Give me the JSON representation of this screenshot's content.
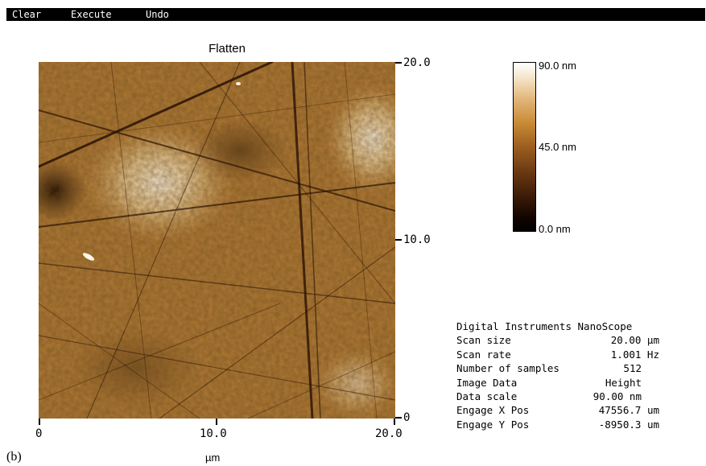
{
  "menu": {
    "clear": "Clear",
    "execute": "Execute",
    "undo": "Undo"
  },
  "panel": {
    "title": "Flatten",
    "label": "(b)"
  },
  "axes": {
    "right_ticks": {
      "top": "20.0",
      "middle": "10.0",
      "bottom": "0"
    },
    "bottom_ticks": {
      "left": "0",
      "middle": "10.0",
      "right": "20.0"
    },
    "x_unit": "µm"
  },
  "colorbar": {
    "max": "90.0 nm",
    "mid": "45.0 nm",
    "min": "0.0 nm",
    "colors": [
      "#ffffff",
      "#e1b477",
      "#9c5e1f",
      "#3a1a08",
      "#000000"
    ]
  },
  "info": {
    "header": "Digital Instruments NanoScope",
    "rows": [
      {
        "label": "Scan size",
        "value": "20.00 µm"
      },
      {
        "label": "Scan rate",
        "value": "1.001 Hz"
      },
      {
        "label": "Number of samples",
        "value": "512"
      },
      {
        "label": "Image Data",
        "value": "Height"
      },
      {
        "label": "Data scale",
        "value": "90.00 nm"
      },
      {
        "label": "Engage X Pos",
        "value": "47556.7 um"
      },
      {
        "label": "Engage Y Pos",
        "value": "-8950.3 um"
      }
    ]
  }
}
